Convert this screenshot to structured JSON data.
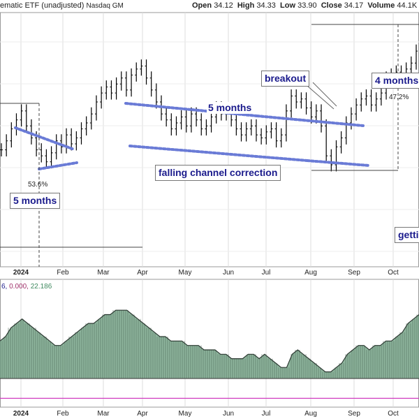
{
  "header": {
    "title": "ematic ETF (unadjusted)",
    "exchange": "Nasdaq GM",
    "ohlc": [
      {
        "label": "Open",
        "value": "34.12"
      },
      {
        "label": "High",
        "value": "34.33"
      },
      {
        "label": "Low",
        "value": "33.90"
      },
      {
        "label": "Close",
        "value": "34.17"
      },
      {
        "label": "Volume",
        "value": "44.1K"
      }
    ]
  },
  "annotations": {
    "five_months_left": "5 months",
    "five_months_top": "5 months",
    "falling_channel": "falling channel correction",
    "breakout": "breakout",
    "four_months": "4 months",
    "getting": "getti",
    "pct_left": "53.6%",
    "pct_right": "47.2%"
  },
  "indicator": {
    "values_a": "6, ",
    "values_b": "0.000, ",
    "values_c": "22.186",
    "colors": {
      "a": "#1a1a8c",
      "b": "#a0306a",
      "c": "#3f8a5f"
    }
  },
  "colors": {
    "price_bar": "#000000",
    "trendline": "#6a7bd6",
    "area_fill": "#7aa88c",
    "area_line": "#2d3a33",
    "magenta_line": "#d03cc0",
    "grid": "#dcdcdc",
    "annotation_text": "#1a1a8c"
  },
  "chart_data": {
    "type": "line",
    "price_panel": {
      "series": [
        {
          "values": [
            30.2,
            30.5,
            30.9,
            31.2,
            31.5,
            31.0,
            30.6,
            30.2,
            30.0,
            29.8,
            30.1,
            30.5,
            30.3,
            30.7,
            30.4,
            30.6,
            30.9,
            31.1,
            31.4,
            31.8,
            32.1,
            32.3,
            32.1,
            32.4,
            32.6,
            32.2,
            32.7,
            32.9,
            33.0,
            32.6,
            32.2,
            31.8,
            31.4,
            31.2,
            30.9,
            31.1,
            31.3,
            31.0,
            31.4,
            31.2,
            30.9,
            31.0,
            31.3,
            31.6,
            31.4,
            31.5,
            31.2,
            30.9,
            30.7,
            30.9,
            31.0,
            30.7,
            30.6,
            30.8,
            30.9,
            30.5,
            30.7,
            31.5,
            32.0,
            31.8,
            31.9,
            31.6,
            31.3,
            31.5,
            31.0,
            30.0,
            29.7,
            30.3,
            30.6,
            31.1,
            31.4,
            31.7,
            31.9,
            32.0,
            31.7,
            31.9,
            32.1,
            32.6,
            32.7,
            32.8,
            32.6,
            32.9,
            33.1,
            33.5
          ],
          "note": "approximate daily closes read from the price bars"
        }
      ],
      "x_ticks": [
        "2024",
        "Feb",
        "Mar",
        "Apr",
        "May",
        "Jun",
        "Jul",
        "Aug",
        "Sep",
        "Oct"
      ]
    },
    "indicator_panel": {
      "type": "area",
      "values": [
        21.2,
        21.3,
        21.5,
        21.6,
        21.7,
        21.6,
        21.5,
        21.4,
        21.3,
        21.2,
        21.1,
        21.1,
        21.2,
        21.3,
        21.4,
        21.5,
        21.6,
        21.6,
        21.7,
        21.8,
        21.8,
        21.9,
        21.9,
        21.9,
        21.8,
        21.7,
        21.6,
        21.5,
        21.4,
        21.3,
        21.3,
        21.2,
        21.2,
        21.2,
        21.1,
        21.1,
        21.1,
        21.0,
        21.0,
        21.0,
        20.9,
        20.9,
        20.8,
        20.8,
        20.8,
        20.9,
        20.9,
        20.8,
        20.9,
        20.8,
        20.7,
        20.6,
        20.6,
        20.9,
        21.0,
        20.9,
        20.8,
        20.7,
        20.6,
        20.5,
        20.5,
        20.6,
        20.7,
        20.9,
        21.0,
        21.1,
        21.1,
        21.0,
        21.1,
        21.1,
        21.2,
        21.2,
        21.3,
        21.4,
        21.6,
        21.7,
        21.8
      ],
      "baseline": 20.35,
      "magenta_level": 19.9,
      "x_ticks": [
        "2024",
        "Feb",
        "Mar",
        "Apr",
        "May",
        "Jun",
        "Jul",
        "Aug",
        "Sep",
        "Oct"
      ]
    }
  }
}
